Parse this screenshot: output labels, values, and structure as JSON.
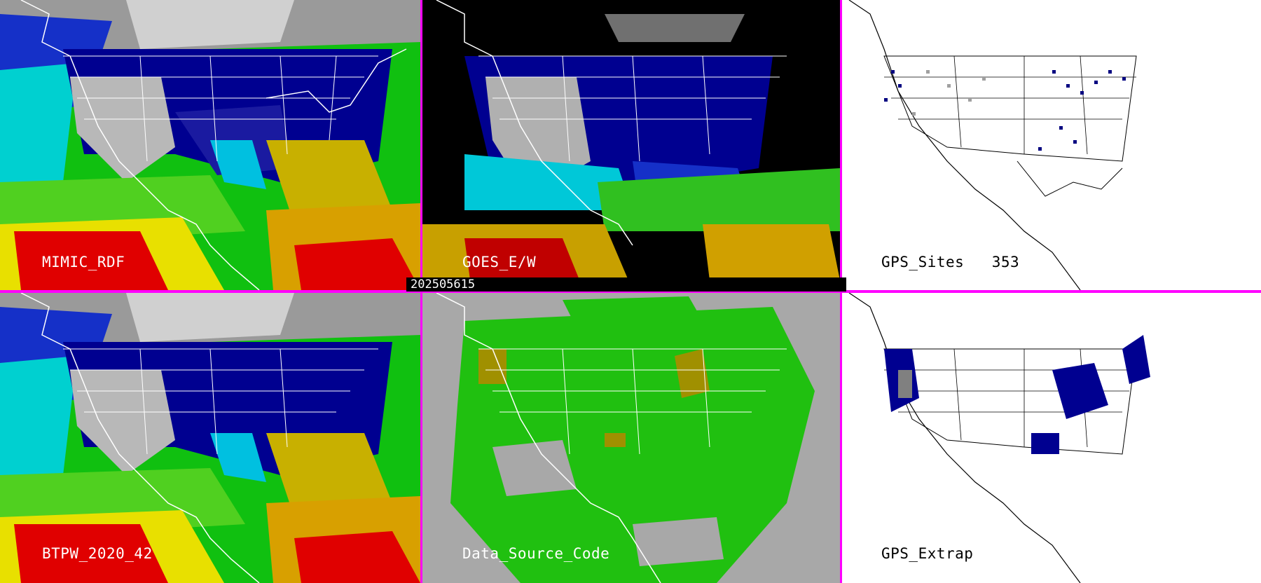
{
  "panels": [
    {
      "id": "mimic",
      "label": "MIMIC_RDF",
      "style": "tpw"
    },
    {
      "id": "goes",
      "label": "GOES_E/W",
      "style": "goes"
    },
    {
      "id": "gps_sites",
      "label": "GPS_Sites",
      "count": "353",
      "style": "sites"
    },
    {
      "id": "btpw",
      "label": "BTPW_2020_42",
      "style": "tpw"
    },
    {
      "id": "dsc",
      "label": "Data_Source_Code",
      "style": "dsc"
    },
    {
      "id": "gps_extrap",
      "label": "GPS_Extrap",
      "style": "extrap"
    }
  ],
  "timestamp": "202505615",
  "colors": {
    "separator": "#ff00ff",
    "tpw_scale": [
      "#d8d8d8",
      "#8a8a8a",
      "#000080",
      "#1530c8",
      "#00b8e8",
      "#00d0d0",
      "#10c010",
      "#60e020",
      "#c0c000",
      "#d8a000",
      "#e00000",
      "#c00000"
    ],
    "dsc_green": "#20c010",
    "dsc_gray": "#a8a8a8",
    "dsc_olive": "#a09000"
  },
  "icons": [
    "coastline-map",
    "state-borders"
  ]
}
